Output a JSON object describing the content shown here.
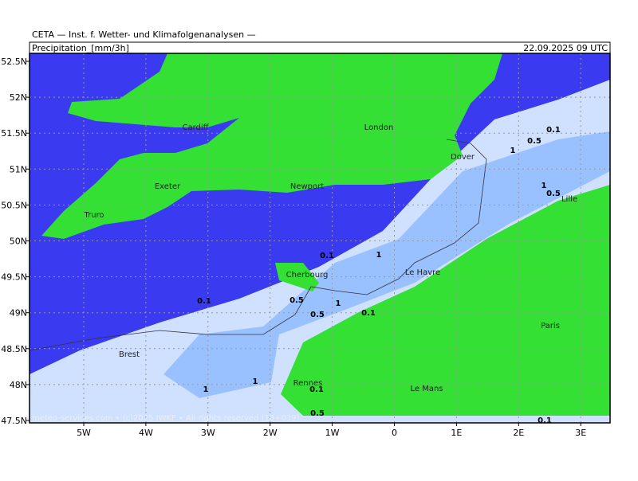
{
  "header": {
    "title": "CETA — Inst. f. Wetter- und Klimafolgenanalysen —",
    "variable": "Precipitation_[mm/3h]",
    "date": "22.09.2025 09 UTC"
  },
  "axes": {
    "lat_ticks": [
      "52.5N",
      "52N",
      "51.5N",
      "51N",
      "50.5N",
      "50N",
      "49.5N",
      "49N",
      "48.5N",
      "48N",
      "47.5N"
    ],
    "lon_ticks": [
      "5W",
      "4W",
      "3W",
      "2W",
      "1W",
      "0",
      "1E",
      "2E",
      "3E"
    ]
  },
  "cities": [
    "Cardiff",
    "London",
    "Dover",
    "Exeter",
    "Newport",
    "Truro",
    "Lille",
    "Cherbourg",
    "Le Havre",
    "Paris",
    "Brest",
    "Rennes",
    "Le Mans"
  ],
  "contours": [
    "0.1",
    "0.5",
    "1",
    "1",
    "0.5",
    "0.1",
    "1",
    "0.1",
    "0.5",
    "1",
    "0.5",
    "0.1",
    "1",
    "1",
    "0.1",
    "0.5",
    "0.1"
  ],
  "footer": "meteo-services.com • (c)2025 IWKF • All rights reserved (18+039)"
}
